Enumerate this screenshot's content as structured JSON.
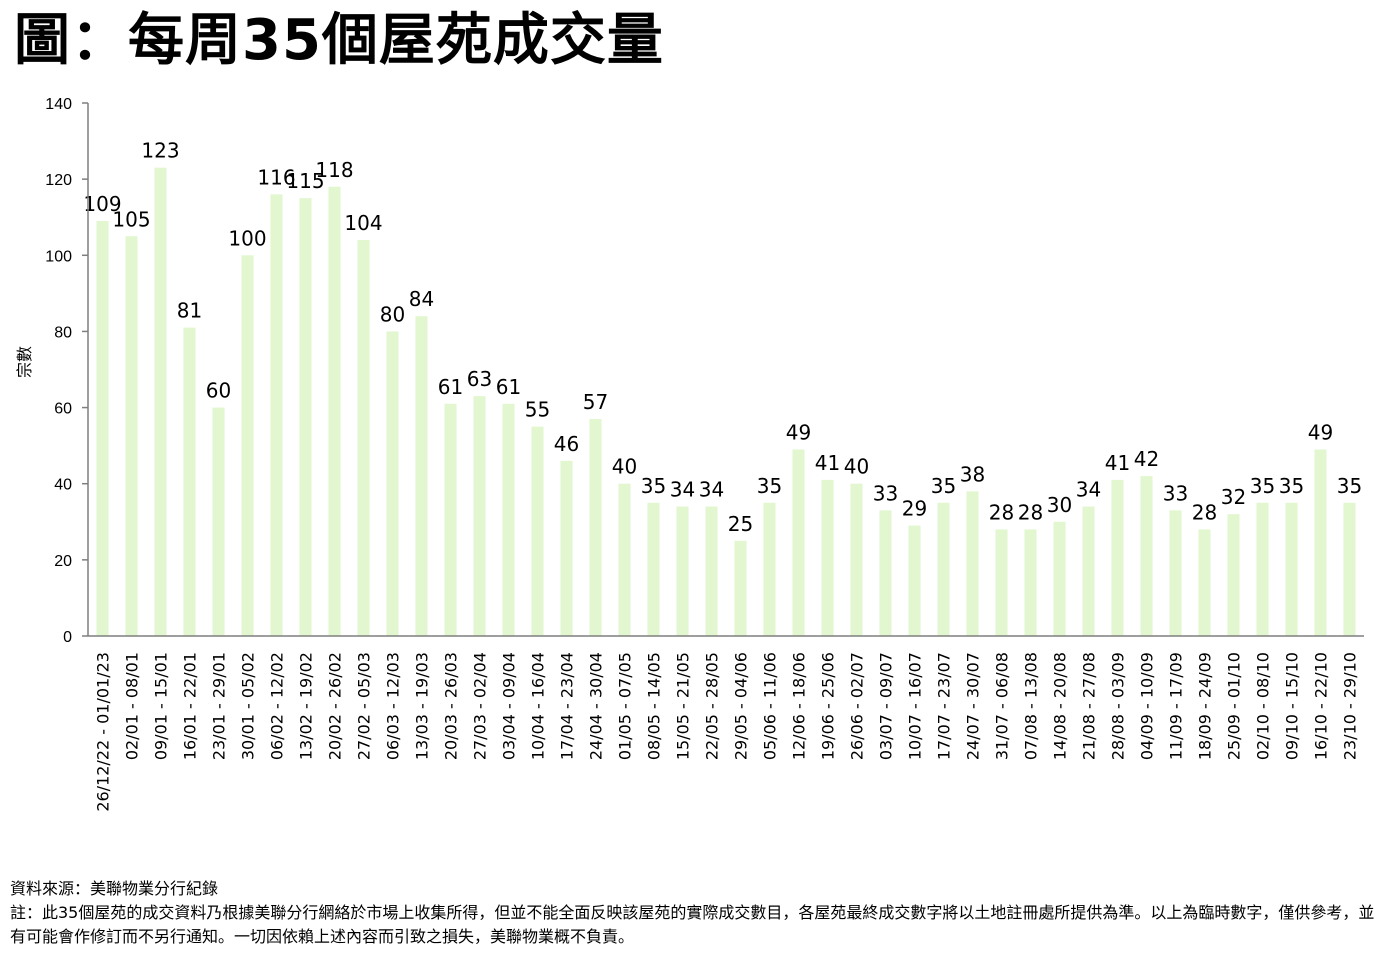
{
  "title": "圖：每周35個屋苑成交量",
  "chart_data": {
    "type": "bar",
    "title": "圖：每周35個屋苑成交量",
    "xlabel": "",
    "ylabel": "宗數",
    "ylim": [
      0,
      140
    ],
    "yticks": [
      0,
      20,
      40,
      60,
      80,
      100,
      120,
      140
    ],
    "grid": false,
    "bar_color": "#e2f7cf",
    "categories": [
      "26/12/22 - 01/01/23",
      "02/01 - 08/01",
      "09/01 - 15/01",
      "16/01 - 22/01",
      "23/01 - 29/01",
      "30/01 - 05/02",
      "06/02 - 12/02",
      "13/02 - 19/02",
      "20/02 - 26/02",
      "27/02 - 05/03",
      "06/03 - 12/03",
      "13/03 - 19/03",
      "20/03 - 26/03",
      "27/03 - 02/04",
      "03/04 - 09/04",
      "10/04 - 16/04",
      "17/04 - 23/04",
      "24/04 - 30/04",
      "01/05 - 07/05",
      "08/05 - 14/05",
      "15/05 - 21/05",
      "22/05 - 28/05",
      "29/05 - 04/06",
      "05/06 - 11/06",
      "12/06 - 18/06",
      "19/06 - 25/06",
      "26/06 - 02/07",
      "03/07 - 09/07",
      "10/07 - 16/07",
      "17/07 - 23/07",
      "24/07 - 30/07",
      "31/07 - 06/08",
      "07/08 - 13/08",
      "14/08 - 20/08",
      "21/08 - 27/08",
      "28/08 - 03/09",
      "04/09 - 10/09",
      "11/09 - 17/09",
      "18/09 - 24/09",
      "25/09 - 01/10",
      "02/10 - 08/10",
      "09/10 - 15/10",
      "16/10 - 22/10",
      "23/10 - 29/10"
    ],
    "values": [
      109,
      105,
      123,
      81,
      60,
      100,
      116,
      115,
      118,
      104,
      80,
      84,
      61,
      63,
      61,
      55,
      46,
      57,
      40,
      35,
      34,
      34,
      25,
      35,
      49,
      41,
      40,
      33,
      29,
      35,
      38,
      28,
      28,
      30,
      34,
      41,
      42,
      33,
      28,
      32,
      35,
      35,
      49,
      35
    ]
  },
  "notes": {
    "source": "資料來源：美聯物業分行紀錄",
    "disclaimer": "註：此35個屋苑的成交資料乃根據美聯分行網絡於市場上收集所得，但並不能全面反映該屋苑的實際成交數目，各屋苑最終成交數字將以土地註冊處所提供為準。以上為臨時數字，僅供參考，並有可能會作修訂而不另行通知。一切因依賴上述內容而引致之損失，美聯物業概不負責。"
  }
}
